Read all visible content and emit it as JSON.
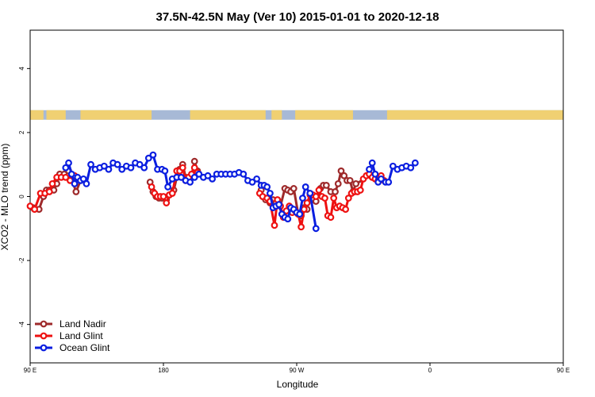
{
  "chart_data": {
    "type": "line",
    "title": "37.5N-42.5N May (Ver 10)   2015-01-01 to 2020-12-18",
    "xlabel": "Longitude",
    "ylabel": "XCO2 - MLO trend (ppm)",
    "xlim": [
      90,
      450
    ],
    "ylim": [
      -5.2,
      5.2
    ],
    "x_ticks": [
      {
        "value": 90,
        "label": "90 E"
      },
      {
        "value": 180,
        "label": "180"
      },
      {
        "value": 270,
        "label": "90 W"
      },
      {
        "value": 360,
        "label": "0"
      },
      {
        "value": 450,
        "label": "90 E"
      },
      {
        "value": 540,
        "label": "180"
      }
    ],
    "y_ticks": [
      -4,
      -2,
      0,
      2,
      4
    ],
    "legend_position": "bottom-left",
    "map_strip": {
      "y_center": 2.55,
      "ocean_color": "#a7b9d6",
      "land_color": "#f0d072"
    },
    "series": [
      {
        "name": "Land Nadir",
        "color": "#9e2a2b",
        "points": [
          [
            92,
            -0.35
          ],
          [
            96,
            -0.4
          ],
          [
            99,
            0
          ],
          [
            101,
            0.2
          ],
          [
            103,
            0.2
          ],
          [
            106,
            0.2
          ],
          [
            108,
            0.4
          ],
          [
            110,
            0.7
          ],
          [
            113,
            0.7
          ],
          [
            116,
            0.8
          ],
          [
            118,
            0.55
          ],
          [
            121,
            0.15
          ],
          [
            124,
            0.5
          ],
          [
            171,
            0.45
          ],
          [
            173,
            0.15
          ],
          [
            175,
            0
          ],
          [
            177,
            -0.05
          ],
          [
            179,
            -0.05
          ],
          [
            182,
            -0.1
          ],
          [
            184,
            0.05
          ],
          [
            187,
            0.2
          ],
          [
            189,
            0.6
          ],
          [
            191,
            0.85
          ],
          [
            193,
            1.0
          ],
          [
            195,
            0.6
          ],
          [
            197,
            0.55
          ],
          [
            199,
            0.65
          ],
          [
            201,
            1.1
          ],
          [
            203,
            0.8
          ],
          [
            246,
            0.2
          ],
          [
            247,
            0
          ],
          [
            249,
            -0.1
          ],
          [
            252,
            -0.2
          ],
          [
            254,
            -0.1
          ],
          [
            256,
            -0.2
          ],
          [
            259,
            -0.3
          ],
          [
            262,
            0.25
          ],
          [
            264,
            0.2
          ],
          [
            266,
            0.15
          ],
          [
            268,
            0.25
          ],
          [
            271,
            -0.55
          ],
          [
            273,
            -0.6
          ],
          [
            275,
            -0.35
          ],
          [
            277,
            -0.4
          ],
          [
            279,
            0.1
          ],
          [
            281,
            -0.1
          ],
          [
            283,
            -0.15
          ],
          [
            286,
            0.25
          ],
          [
            288,
            0.35
          ],
          [
            290,
            0.35
          ],
          [
            293,
            0.15
          ],
          [
            296,
            0.15
          ],
          [
            298,
            0.4
          ],
          [
            300,
            0.8
          ],
          [
            302,
            0.65
          ],
          [
            304,
            0.5
          ],
          [
            306,
            0.5
          ],
          [
            308,
            0.15
          ],
          [
            310,
            0.4
          ],
          [
            320,
            0.65
          ]
        ]
      },
      {
        "name": "Land Glint",
        "color": "#ee1111",
        "points": [
          [
            90,
            -0.3
          ],
          [
            93,
            -0.4
          ],
          [
            97,
            0.1
          ],
          [
            100,
            0.1
          ],
          [
            103,
            0.15
          ],
          [
            105,
            0.4
          ],
          [
            108,
            0.6
          ],
          [
            111,
            0.6
          ],
          [
            114,
            0.6
          ],
          [
            117,
            0.5
          ],
          [
            120,
            0.65
          ],
          [
            172,
            0.3
          ],
          [
            174,
            0.1
          ],
          [
            176,
            0
          ],
          [
            178,
            0
          ],
          [
            180,
            0
          ],
          [
            182,
            -0.2
          ],
          [
            184,
            0.05
          ],
          [
            186,
            0.1
          ],
          [
            189,
            0.8
          ],
          [
            191,
            0.8
          ],
          [
            193,
            0.9
          ],
          [
            195,
            0.5
          ],
          [
            197,
            0.6
          ],
          [
            199,
            0.7
          ],
          [
            201,
            0.9
          ],
          [
            203,
            0.75
          ],
          [
            245,
            0.1
          ],
          [
            247,
            0
          ],
          [
            250,
            -0.05
          ],
          [
            252,
            -0.15
          ],
          [
            255,
            -0.9
          ],
          [
            257,
            -0.1
          ],
          [
            259,
            -0.3
          ],
          [
            261,
            -0.65
          ],
          [
            263,
            -0.45
          ],
          [
            265,
            -0.3
          ],
          [
            267,
            -0.5
          ],
          [
            269,
            -0.45
          ],
          [
            271,
            -0.55
          ],
          [
            273,
            -0.95
          ],
          [
            275,
            -0.4
          ],
          [
            277,
            -0.2
          ],
          [
            279,
            0.05
          ],
          [
            281,
            0.05
          ],
          [
            283,
            0
          ],
          [
            285,
            0.2
          ],
          [
            287,
            0
          ],
          [
            289,
            -0.05
          ],
          [
            291,
            -0.6
          ],
          [
            293,
            -0.65
          ],
          [
            295,
            -0.05
          ],
          [
            297,
            -0.35
          ],
          [
            299,
            -0.3
          ],
          [
            301,
            -0.35
          ],
          [
            303,
            -0.4
          ],
          [
            305,
            -0.05
          ],
          [
            307,
            0.1
          ],
          [
            309,
            0.15
          ],
          [
            311,
            0.15
          ],
          [
            313,
            0.2
          ],
          [
            315,
            0.55
          ],
          [
            317,
            0.65
          ],
          [
            319,
            0.7
          ],
          [
            321,
            0.6
          ],
          [
            323,
            0.55
          ],
          [
            325,
            0.5
          ],
          [
            327,
            0.65
          ],
          [
            329,
            0.5
          ]
        ]
      },
      {
        "name": "Ocean Glint",
        "color": "#0a1ee0",
        "points": [
          [
            114,
            0.9
          ],
          [
            116,
            1.05
          ],
          [
            118,
            0.7
          ],
          [
            120,
            0.4
          ],
          [
            122,
            0.6
          ],
          [
            124,
            0.5
          ],
          [
            126,
            0.55
          ],
          [
            128,
            0.4
          ],
          [
            131,
            1.0
          ],
          [
            134,
            0.85
          ],
          [
            137,
            0.9
          ],
          [
            140,
            0.95
          ],
          [
            143,
            0.85
          ],
          [
            146,
            1.05
          ],
          [
            149,
            1.0
          ],
          [
            152,
            0.85
          ],
          [
            155,
            0.95
          ],
          [
            158,
            0.9
          ],
          [
            161,
            1.05
          ],
          [
            164,
            1.0
          ],
          [
            167,
            0.9
          ],
          [
            170,
            1.2
          ],
          [
            173,
            1.3
          ],
          [
            176,
            0.85
          ],
          [
            179,
            0.85
          ],
          [
            181,
            0.8
          ],
          [
            183,
            0.3
          ],
          [
            186,
            0.55
          ],
          [
            189,
            0.6
          ],
          [
            192,
            0.6
          ],
          [
            195,
            0.5
          ],
          [
            198,
            0.45
          ],
          [
            201,
            0.6
          ],
          [
            204,
            0.7
          ],
          [
            207,
            0.6
          ],
          [
            210,
            0.65
          ],
          [
            213,
            0.55
          ],
          [
            216,
            0.7
          ],
          [
            219,
            0.7
          ],
          [
            222,
            0.7
          ],
          [
            225,
            0.7
          ],
          [
            228,
            0.7
          ],
          [
            231,
            0.75
          ],
          [
            234,
            0.7
          ],
          [
            237,
            0.5
          ],
          [
            240,
            0.45
          ],
          [
            243,
            0.55
          ],
          [
            246,
            0.35
          ],
          [
            248,
            0.35
          ],
          [
            250,
            0.3
          ],
          [
            252,
            0.1
          ],
          [
            254,
            -0.35
          ],
          [
            256,
            -0.3
          ],
          [
            258,
            -0.25
          ],
          [
            260,
            -0.55
          ],
          [
            262,
            -0.65
          ],
          [
            264,
            -0.7
          ],
          [
            266,
            -0.35
          ],
          [
            268,
            -0.4
          ],
          [
            270,
            -0.5
          ],
          [
            272,
            -0.55
          ],
          [
            274,
            -0.05
          ],
          [
            276,
            0.3
          ],
          [
            279,
            0.1
          ],
          [
            283,
            -1.0
          ],
          [
            319,
            0.85
          ],
          [
            321,
            1.05
          ],
          [
            323,
            0.7
          ],
          [
            325,
            0.45
          ],
          [
            327,
            0.55
          ],
          [
            330,
            0.45
          ],
          [
            332,
            0.45
          ],
          [
            335,
            0.95
          ],
          [
            338,
            0.85
          ],
          [
            341,
            0.9
          ],
          [
            344,
            0.95
          ],
          [
            347,
            0.9
          ],
          [
            350,
            1.05
          ]
        ]
      }
    ]
  }
}
